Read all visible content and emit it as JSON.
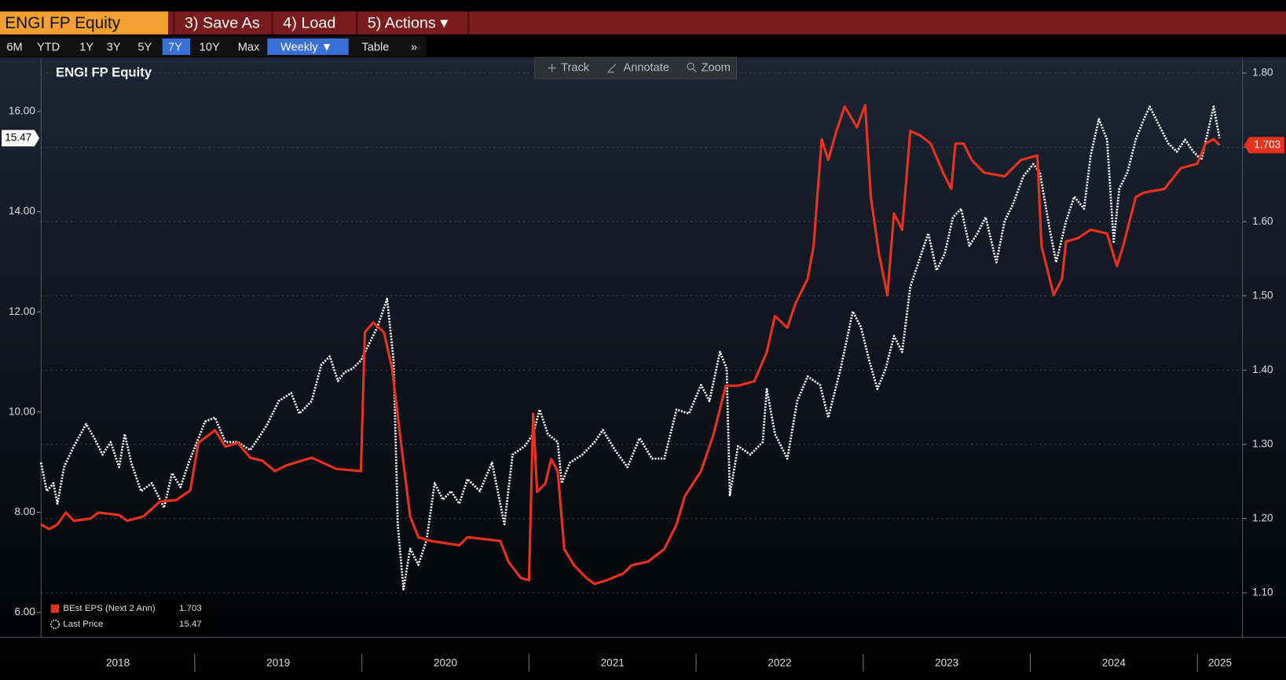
{
  "ui": {
    "ticker_box": "ENGI FP Equity",
    "menu": [
      "3) Save As",
      "4) Load",
      "5) Actions ▾"
    ],
    "ranges": [
      "6M",
      "YTD",
      "1Y",
      "3Y",
      "5Y",
      "7Y",
      "10Y",
      "Max"
    ],
    "active_range": 5,
    "frequency": "Weekly ▼",
    "table": "Table",
    "more": "»",
    "tools": [
      "Track",
      "Annotate",
      "Zoom"
    ]
  },
  "chart_data": {
    "type": "line",
    "title": "ENGI FP Equity",
    "grid": true,
    "legend": "bottom-left",
    "xlim": [
      2018.08,
      2025.27
    ],
    "xticks": [
      {
        "value": 2018,
        "label": "2018"
      },
      {
        "value": 2019,
        "label": "2019"
      },
      {
        "value": 2020,
        "label": "2020"
      },
      {
        "value": 2021,
        "label": "2021"
      },
      {
        "value": 2022,
        "label": "2022"
      },
      {
        "value": 2023,
        "label": "2023"
      },
      {
        "value": 2024,
        "label": "2024"
      },
      {
        "value": 2025,
        "label": "2025"
      }
    ],
    "ylim": [
      5.5,
      17.05
    ],
    "yticks": [
      {
        "value": 6,
        "label": "6.00"
      },
      {
        "value": 8,
        "label": "8.00"
      },
      {
        "value": 10,
        "label": "10.00"
      },
      {
        "value": 12,
        "label": "12.00"
      },
      {
        "value": 14,
        "label": "14.00"
      },
      {
        "value": 16,
        "label": "16.00"
      }
    ],
    "y2lim": [
      1.04,
      1.819
    ],
    "y2ticks": [
      {
        "value": 1.1,
        "label": "1.10"
      },
      {
        "value": 1.2,
        "label": "1.20"
      },
      {
        "value": 1.3,
        "label": "1.30"
      },
      {
        "value": 1.4,
        "label": "1.40"
      },
      {
        "value": 1.5,
        "label": "1.50"
      },
      {
        "value": 1.6,
        "label": "1.60"
      },
      {
        "value": 1.7,
        "label": "1.70"
      },
      {
        "value": 1.8,
        "label": "1.80"
      }
    ],
    "series": [
      {
        "name": "BEst EPS (Next 2 Ann)",
        "color": "#e8321e",
        "axis": "y2",
        "style": "solid",
        "x": [
          2018.08,
          2018.129,
          2018.178,
          2018.228,
          2018.277,
          2018.375,
          2018.424,
          2018.547,
          2018.596,
          2018.694,
          2018.792,
          2018.89,
          2018.973,
          2019.022,
          2019.121,
          2019.184,
          2019.258,
          2019.332,
          2019.405,
          2019.479,
          2019.553,
          2019.7,
          2019.847,
          2019.994,
          2020.018,
          2020.068,
          2020.132,
          2020.181,
          2020.24,
          2020.289,
          2020.338,
          2020.411,
          2020.583,
          2020.632,
          2020.828,
          2020.877,
          2020.951,
          2021.0,
          2021.025,
          2021.049,
          2021.098,
          2021.133,
          2021.172,
          2021.211,
          2021.27,
          2021.344,
          2021.393,
          2021.466,
          2021.564,
          2021.613,
          2021.712,
          2021.81,
          2021.883,
          2021.932,
          2022.03,
          2022.104,
          2022.178,
          2022.251,
          2022.349,
          2022.423,
          2022.472,
          2022.546,
          2022.595,
          2022.668,
          2022.703,
          2022.752,
          2022.791,
          2022.84,
          2022.889,
          2022.963,
          2023.012,
          2023.046,
          2023.095,
          2023.145,
          2023.184,
          2023.233,
          2023.282,
          2023.341,
          2023.404,
          2023.478,
          2023.527,
          2023.552,
          2023.601,
          2023.65,
          2023.723,
          2023.846,
          2023.944,
          2024.042,
          2024.067,
          2024.14,
          2024.19,
          2024.214,
          2024.288,
          2024.361,
          2024.459,
          2024.518,
          2024.558,
          2024.631,
          2024.68,
          2024.803,
          2024.901,
          2024.999,
          2025.048,
          2025.097,
          2025.132
        ],
        "values": [
          1.192,
          1.186,
          1.192,
          1.208,
          1.197,
          1.2,
          1.208,
          1.205,
          1.197,
          1.203,
          1.223,
          1.225,
          1.238,
          1.302,
          1.319,
          1.297,
          1.302,
          1.282,
          1.278,
          1.264,
          1.272,
          1.282,
          1.267,
          1.264,
          1.451,
          1.464,
          1.451,
          1.402,
          1.291,
          1.203,
          1.175,
          1.17,
          1.164,
          1.175,
          1.17,
          1.142,
          1.12,
          1.117,
          1.341,
          1.236,
          1.247,
          1.28,
          1.264,
          1.159,
          1.137,
          1.12,
          1.112,
          1.117,
          1.126,
          1.137,
          1.142,
          1.159,
          1.192,
          1.23,
          1.264,
          1.313,
          1.379,
          1.379,
          1.385,
          1.424,
          1.473,
          1.457,
          1.49,
          1.523,
          1.567,
          1.711,
          1.683,
          1.722,
          1.755,
          1.727,
          1.757,
          1.633,
          1.556,
          1.501,
          1.611,
          1.589,
          1.722,
          1.716,
          1.705,
          1.666,
          1.644,
          1.705,
          1.705,
          1.683,
          1.666,
          1.661,
          1.683,
          1.689,
          1.567,
          1.501,
          1.523,
          1.573,
          1.578,
          1.589,
          1.584,
          1.54,
          1.569,
          1.633,
          1.639,
          1.644,
          1.672,
          1.678,
          1.705,
          1.711,
          1.703
        ]
      },
      {
        "name": "Last Price",
        "color": "#ffffff",
        "axis": "y",
        "style": "dotted",
        "x": [
          2018.08,
          2018.115,
          2018.154,
          2018.178,
          2018.218,
          2018.277,
          2018.35,
          2018.399,
          2018.448,
          2018.497,
          2018.547,
          2018.581,
          2018.62,
          2018.679,
          2018.743,
          2018.816,
          2018.865,
          2018.915,
          2018.964,
          2019.013,
          2019.062,
          2019.121,
          2019.184,
          2019.258,
          2019.332,
          2019.381,
          2019.43,
          2019.503,
          2019.577,
          2019.626,
          2019.7,
          2019.758,
          2019.808,
          2019.857,
          2019.896,
          2019.945,
          2019.994,
          2020.043,
          2020.092,
          2020.151,
          2020.19,
          2020.215,
          2020.249,
          2020.289,
          2020.338,
          2020.387,
          2020.436,
          2020.485,
          2020.534,
          2020.583,
          2020.632,
          2020.706,
          2020.779,
          2020.853,
          2020.902,
          2020.975,
          2021.025,
          2021.064,
          2021.113,
          2021.172,
          2021.196,
          2021.245,
          2021.319,
          2021.393,
          2021.442,
          2021.515,
          2021.589,
          2021.662,
          2021.736,
          2021.81,
          2021.883,
          2021.957,
          2022.03,
          2022.08,
          2022.143,
          2022.183,
          2022.202,
          2022.251,
          2022.325,
          2022.399,
          2022.423,
          2022.472,
          2022.546,
          2022.605,
          2022.668,
          2022.742,
          2022.791,
          2022.865,
          2022.938,
          2022.987,
          2023.036,
          2023.085,
          2023.135,
          2023.184,
          2023.233,
          2023.282,
          2023.331,
          2023.39,
          2023.439,
          2023.488,
          2023.537,
          2023.586,
          2023.635,
          2023.684,
          2023.733,
          2023.797,
          2023.846,
          2023.895,
          2023.959,
          2024.018,
          2024.057,
          2024.116,
          2024.155,
          2024.214,
          2024.263,
          2024.322,
          2024.361,
          2024.41,
          2024.459,
          2024.499,
          2024.533,
          2024.582,
          2024.631,
          2024.68,
          2024.715,
          2024.764,
          2024.827,
          2024.877,
          2024.926,
          2024.975,
          2025.024,
          2025.058,
          2025.097,
          2025.132
        ],
        "values": [
          8.99,
          8.42,
          8.58,
          8.17,
          8.9,
          9.32,
          9.76,
          9.48,
          9.15,
          9.4,
          8.9,
          9.56,
          8.99,
          8.42,
          8.58,
          8.09,
          8.78,
          8.5,
          8.99,
          9.4,
          9.81,
          9.89,
          9.4,
          9.4,
          9.24,
          9.48,
          9.73,
          10.22,
          10.38,
          9.97,
          10.22,
          10.95,
          11.11,
          10.62,
          10.79,
          10.87,
          11.03,
          11.36,
          11.69,
          12.26,
          11.03,
          7.76,
          6.46,
          7.27,
          6.95,
          7.44,
          8.58,
          8.25,
          8.42,
          8.17,
          8.66,
          8.42,
          8.99,
          7.76,
          9.15,
          9.32,
          9.56,
          10.05,
          9.56,
          9.4,
          8.58,
          8.99,
          9.15,
          9.4,
          9.64,
          9.24,
          8.9,
          9.48,
          9.07,
          9.07,
          10.05,
          9.97,
          10.54,
          10.22,
          11.2,
          10.87,
          8.34,
          9.32,
          9.15,
          9.4,
          10.46,
          9.56,
          9.07,
          10.22,
          10.71,
          10.54,
          9.89,
          10.87,
          12.01,
          11.69,
          11.03,
          10.46,
          10.87,
          11.52,
          11.2,
          12.5,
          12.99,
          13.57,
          12.83,
          13.16,
          13.89,
          14.06,
          13.32,
          13.57,
          13.89,
          12.99,
          13.81,
          14.14,
          14.71,
          14.95,
          14.79,
          13.65,
          12.99,
          13.81,
          14.3,
          14.06,
          15.12,
          15.85,
          15.44,
          13.4,
          14.46,
          14.79,
          15.44,
          15.85,
          16.1,
          15.77,
          15.36,
          15.2,
          15.44,
          15.2,
          15.04,
          15.53,
          16.1,
          15.47
        ]
      }
    ]
  }
}
